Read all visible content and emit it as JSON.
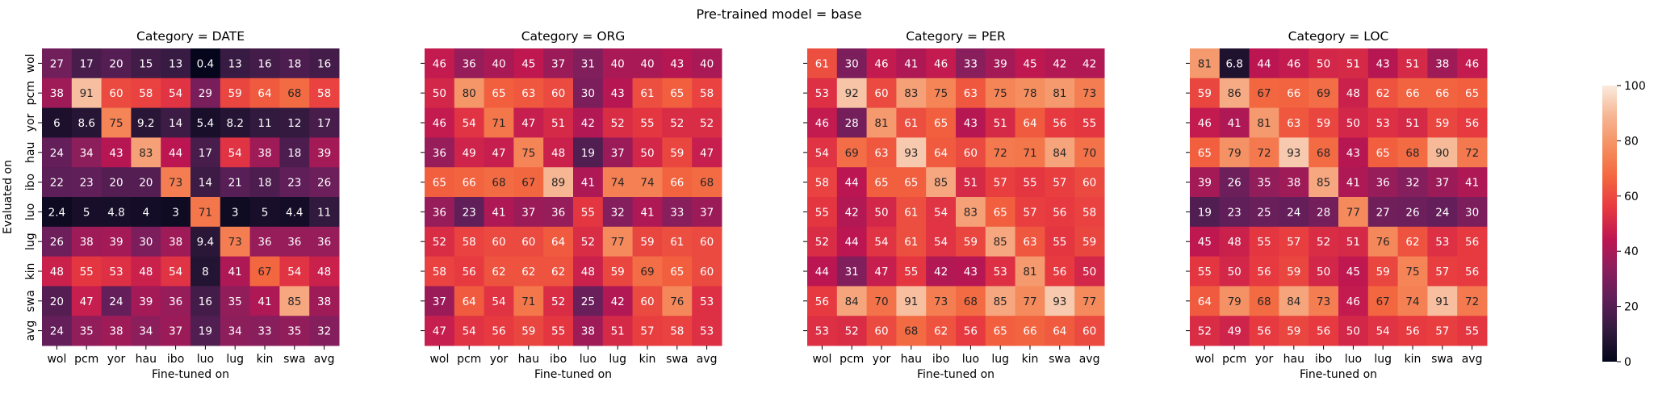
{
  "suptitle": "Pre-trained model = base",
  "shared": {
    "ylabel": "Evaluated on",
    "xlabel": "Fine-tuned on",
    "row_labels": [
      "wol",
      "pcm",
      "yor",
      "hau",
      "ibo",
      "luo",
      "lug",
      "kin",
      "swa",
      "avg"
    ],
    "col_labels": [
      "wol",
      "pcm",
      "yor",
      "hau",
      "ibo",
      "luo",
      "lug",
      "kin",
      "swa",
      "avg"
    ]
  },
  "colorbar": {
    "min": 0,
    "max": 100,
    "ticks": [
      "0",
      "20",
      "40",
      "60",
      "80",
      "100"
    ],
    "colormap": "rocket",
    "stops": [
      "#03051a",
      "#311a3d",
      "#5d1f59",
      "#8a1e5d",
      "#bd1652",
      "#e63840",
      "#f3663f",
      "#f58e5f",
      "#f6b592",
      "#faebdd"
    ]
  },
  "chart_data": [
    {
      "type": "heatmap",
      "title": "Category = DATE",
      "xlabel": "Fine-tuned on",
      "ylabel": "Evaluated on",
      "x": [
        "wol",
        "pcm",
        "yor",
        "hau",
        "ibo",
        "luo",
        "lug",
        "kin",
        "swa",
        "avg"
      ],
      "y": [
        "wol",
        "pcm",
        "yor",
        "hau",
        "ibo",
        "luo",
        "lug",
        "kin",
        "swa",
        "avg"
      ],
      "values": [
        [
          "27",
          "17",
          "20",
          "15",
          "13",
          "0.4",
          "13",
          "16",
          "18",
          "16"
        ],
        [
          "38",
          "91",
          "60",
          "58",
          "54",
          "29",
          "59",
          "64",
          "68",
          "58"
        ],
        [
          "6",
          "8.6",
          "75",
          "9.2",
          "14",
          "5.4",
          "8.2",
          "11",
          "12",
          "17"
        ],
        [
          "24",
          "34",
          "43",
          "83",
          "44",
          "17",
          "54",
          "38",
          "18",
          "39"
        ],
        [
          "22",
          "23",
          "20",
          "20",
          "73",
          "14",
          "21",
          "18",
          "23",
          "26"
        ],
        [
          "2.4",
          "5",
          "4.8",
          "4",
          "3",
          "71",
          "3",
          "5",
          "4.4",
          "11"
        ],
        [
          "26",
          "38",
          "39",
          "30",
          "38",
          "9.4",
          "73",
          "36",
          "36",
          "36"
        ],
        [
          "48",
          "55",
          "53",
          "48",
          "54",
          "8",
          "41",
          "67",
          "54",
          "48"
        ],
        [
          "20",
          "47",
          "24",
          "39",
          "36",
          "16",
          "35",
          "41",
          "85",
          "38"
        ],
        [
          "24",
          "35",
          "38",
          "34",
          "37",
          "19",
          "34",
          "33",
          "35",
          "32"
        ]
      ]
    },
    {
      "type": "heatmap",
      "title": "Category = ORG",
      "xlabel": "Fine-tuned on",
      "x": [
        "wol",
        "pcm",
        "yor",
        "hau",
        "ibo",
        "luo",
        "lug",
        "kin",
        "swa",
        "avg"
      ],
      "y": [
        "wol",
        "pcm",
        "yor",
        "hau",
        "ibo",
        "luo",
        "lug",
        "kin",
        "swa",
        "avg"
      ],
      "values": [
        [
          "46",
          "36",
          "40",
          "45",
          "37",
          "31",
          "40",
          "40",
          "43",
          "40"
        ],
        [
          "50",
          "80",
          "65",
          "63",
          "60",
          "30",
          "43",
          "61",
          "65",
          "58"
        ],
        [
          "46",
          "54",
          "71",
          "47",
          "51",
          "42",
          "52",
          "55",
          "52",
          "52"
        ],
        [
          "36",
          "49",
          "47",
          "75",
          "48",
          "19",
          "37",
          "50",
          "59",
          "47"
        ],
        [
          "65",
          "66",
          "68",
          "67",
          "89",
          "41",
          "74",
          "74",
          "66",
          "68"
        ],
        [
          "36",
          "23",
          "41",
          "37",
          "36",
          "55",
          "32",
          "41",
          "33",
          "37"
        ],
        [
          "52",
          "58",
          "60",
          "60",
          "64",
          "52",
          "77",
          "59",
          "61",
          "60"
        ],
        [
          "58",
          "56",
          "62",
          "62",
          "62",
          "48",
          "59",
          "69",
          "65",
          "60"
        ],
        [
          "37",
          "64",
          "54",
          "71",
          "52",
          "25",
          "42",
          "60",
          "76",
          "53"
        ],
        [
          "47",
          "54",
          "56",
          "59",
          "55",
          "38",
          "51",
          "57",
          "58",
          "53"
        ]
      ]
    },
    {
      "type": "heatmap",
      "title": "Category = PER",
      "xlabel": "Fine-tuned on",
      "x": [
        "wol",
        "pcm",
        "yor",
        "hau",
        "ibo",
        "luo",
        "lug",
        "kin",
        "swa",
        "avg"
      ],
      "y": [
        "wol",
        "pcm",
        "yor",
        "hau",
        "ibo",
        "luo",
        "lug",
        "kin",
        "swa",
        "avg"
      ],
      "values": [
        [
          "61",
          "30",
          "46",
          "41",
          "46",
          "33",
          "39",
          "45",
          "42",
          "42"
        ],
        [
          "53",
          "92",
          "60",
          "83",
          "75",
          "63",
          "75",
          "78",
          "81",
          "73"
        ],
        [
          "46",
          "28",
          "81",
          "61",
          "65",
          "43",
          "51",
          "64",
          "56",
          "55"
        ],
        [
          "54",
          "69",
          "63",
          "93",
          "64",
          "60",
          "72",
          "71",
          "84",
          "70"
        ],
        [
          "58",
          "44",
          "65",
          "65",
          "85",
          "51",
          "57",
          "55",
          "57",
          "60"
        ],
        [
          "55",
          "42",
          "50",
          "61",
          "54",
          "83",
          "65",
          "57",
          "56",
          "58"
        ],
        [
          "52",
          "44",
          "54",
          "61",
          "54",
          "59",
          "85",
          "63",
          "55",
          "59"
        ],
        [
          "44",
          "31",
          "47",
          "55",
          "42",
          "43",
          "53",
          "81",
          "56",
          "50"
        ],
        [
          "56",
          "84",
          "70",
          "91",
          "73",
          "68",
          "85",
          "77",
          "93",
          "77"
        ],
        [
          "53",
          "52",
          "60",
          "68",
          "62",
          "56",
          "65",
          "66",
          "64",
          "60"
        ]
      ]
    },
    {
      "type": "heatmap",
      "title": "Category = LOC",
      "xlabel": "Fine-tuned on",
      "x": [
        "wol",
        "pcm",
        "yor",
        "hau",
        "ibo",
        "luo",
        "lug",
        "kin",
        "swa",
        "avg"
      ],
      "y": [
        "wol",
        "pcm",
        "yor",
        "hau",
        "ibo",
        "luo",
        "lug",
        "kin",
        "swa",
        "avg"
      ],
      "values": [
        [
          "81",
          "6.8",
          "44",
          "46",
          "50",
          "51",
          "43",
          "51",
          "38",
          "46"
        ],
        [
          "59",
          "86",
          "67",
          "66",
          "69",
          "48",
          "62",
          "66",
          "66",
          "65"
        ],
        [
          "46",
          "41",
          "81",
          "63",
          "59",
          "50",
          "53",
          "51",
          "59",
          "56"
        ],
        [
          "65",
          "79",
          "72",
          "93",
          "68",
          "43",
          "65",
          "68",
          "90",
          "72"
        ],
        [
          "39",
          "26",
          "35",
          "38",
          "85",
          "41",
          "36",
          "32",
          "37",
          "41"
        ],
        [
          "19",
          "23",
          "25",
          "24",
          "28",
          "77",
          "27",
          "26",
          "24",
          "30"
        ],
        [
          "45",
          "48",
          "55",
          "57",
          "52",
          "51",
          "76",
          "62",
          "53",
          "56"
        ],
        [
          "55",
          "50",
          "56",
          "59",
          "50",
          "45",
          "59",
          "75",
          "57",
          "56"
        ],
        [
          "64",
          "79",
          "68",
          "84",
          "73",
          "46",
          "67",
          "74",
          "91",
          "72"
        ],
        [
          "52",
          "49",
          "56",
          "59",
          "56",
          "50",
          "54",
          "56",
          "57",
          "55"
        ]
      ]
    }
  ]
}
